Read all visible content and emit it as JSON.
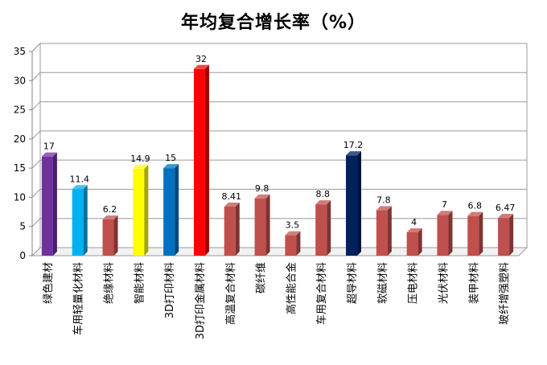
{
  "chart_data": {
    "type": "bar",
    "title": "年均复合增长率（%）",
    "xlabel": "",
    "ylabel": "",
    "ylim": [
      0,
      35
    ],
    "yticks": [
      0,
      5,
      10,
      15,
      20,
      25,
      30,
      35
    ],
    "grid": true,
    "legend": "none",
    "categories": [
      "绿色建材",
      "车用轻量化材料",
      "绝缘材料",
      "智能材料",
      "3D打印材料",
      "3D打印金属材料",
      "高温复合材料",
      "碳纤维",
      "高性能合金",
      "车用复合材料",
      "超导材料",
      "软磁材料",
      "压电材料",
      "光伏材料",
      "装甲材料",
      "玻纤增强塑料"
    ],
    "values": [
      17,
      11.4,
      6.2,
      14.9,
      15,
      32,
      8.41,
      9.8,
      3.5,
      8.8,
      17.2,
      7.8,
      4,
      7,
      6.8,
      6.47
    ],
    "value_labels": [
      "17",
      "11.4",
      "6.2",
      "14.9",
      "15",
      "32",
      "8.41",
      "9.8",
      "3.5",
      "8.8",
      "17.2",
      "7.8",
      "4",
      "7",
      "6.8",
      "6.47"
    ],
    "colors": [
      "#7030A0",
      "#00B0F0",
      "#C0504D",
      "#FFFF00",
      "#0070C0",
      "#FF0000",
      "#C0504D",
      "#C0504D",
      "#C0504D",
      "#C0504D",
      "#002060",
      "#C0504D",
      "#C0504D",
      "#C0504D",
      "#C0504D",
      "#C0504D"
    ]
  }
}
